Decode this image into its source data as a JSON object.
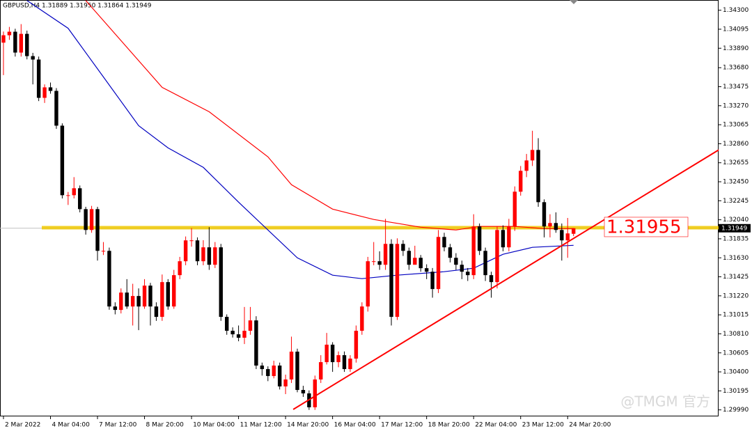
{
  "chart_data": {
    "type": "candlestick",
    "title": "GBPUSD,H4  1.31889 1.31950 1.31864 1.31949",
    "watermark": "@TMGM 官方",
    "up_color": "#ff0000",
    "down_color": "#000000",
    "categories": [
      "2 Mar 2022",
      null,
      null,
      null,
      null,
      null,
      null,
      null,
      "4 Mar 04:00",
      null,
      null,
      null,
      null,
      null,
      null,
      null,
      "7 Mar 12:00",
      null,
      null,
      null,
      null,
      null,
      null,
      null,
      "8 Mar 20:00",
      null,
      null,
      null,
      null,
      null,
      null,
      null,
      "10 Mar 04:00",
      null,
      null,
      null,
      null,
      null,
      null,
      null,
      "11 Mar 12:00",
      null,
      null,
      null,
      null,
      null,
      null,
      null,
      "14 Mar 20:00",
      null,
      null,
      null,
      null,
      null,
      null,
      null,
      "16 Mar 04:00",
      null,
      null,
      null,
      null,
      null,
      null,
      null,
      "17 Mar 12:00",
      null,
      null,
      null,
      null,
      null,
      null,
      null,
      "18 Mar 20:00",
      null,
      null,
      null,
      null,
      null,
      null,
      null,
      "22 Mar 04:00",
      null,
      null,
      null,
      null,
      null,
      null,
      null,
      "23 Mar 12:00",
      null,
      null,
      null,
      null,
      null,
      null,
      null,
      "24 Mar 20:00",
      null
    ],
    "open": [
      1.3395,
      1.3403,
      1.34068,
      1.33843,
      1.34045,
      1.33805,
      1.33768,
      1.33355,
      1.33468,
      1.3343,
      1.33055,
      1.32305,
      1.32305,
      1.3238,
      1.32155,
      1.3193,
      1.32155,
      1.31705,
      1.31705,
      1.31105,
      1.31068,
      1.31255,
      1.31105,
      1.31218,
      1.31105,
      1.3133,
      1.31105,
      1.30993,
      1.31368,
      1.31105,
      1.31443,
      1.31593,
      1.31818,
      1.31818,
      1.31593,
      1.31743,
      1.31555,
      1.31743,
      1.30993,
      1.30843,
      1.30805,
      1.30768,
      1.30843,
      1.30955,
      1.30468,
      1.3043,
      1.30355,
      1.30468,
      1.30243,
      1.30318,
      1.30618,
      1.30205,
      1.30168,
      1.30018,
      1.30318,
      1.30505,
      1.30693,
      1.30505,
      1.3058,
      1.3043,
      1.30543,
      1.30843,
      1.31105,
      1.31593,
      1.31593,
      1.31555,
      1.3178,
      1.30993,
      1.3178,
      1.31705,
      1.31555,
      1.3163,
      1.31518,
      1.3148,
      1.31293,
      1.31855,
      1.31743,
      1.3163,
      1.31555,
      1.3148,
      1.31443,
      1.31968,
      1.31705,
      1.31443,
      1.31368,
      1.3193,
      1.31743,
      1.31968,
      1.32343,
      1.32568,
      1.3268,
      1.32793,
      1.3223,
      1.31968,
      1.32005,
      1.3193,
      1.31818,
      1.31889
    ],
    "high": [
      1.3407,
      1.3412,
      1.341,
      1.3415,
      1.3408,
      1.3384,
      1.338,
      1.335,
      1.3352,
      1.3346,
      1.3308,
      1.3234,
      1.325,
      1.3241,
      1.3218,
      1.3219,
      1.3218,
      1.318,
      1.3174,
      1.3115,
      1.313,
      1.314,
      1.3135,
      1.313,
      1.314,
      1.3136,
      1.3115,
      1.3145,
      1.314,
      1.315,
      1.3164,
      1.3186,
      1.3195,
      1.3185,
      1.3182,
      1.3196,
      1.318,
      1.3178,
      1.3102,
      1.3088,
      1.309,
      1.311,
      1.311,
      1.31,
      1.305,
      1.3046,
      1.3052,
      1.305,
      1.3037,
      1.3078,
      1.3065,
      1.3025,
      1.302,
      1.3036,
      1.3058,
      1.3082,
      1.3072,
      1.3062,
      1.3062,
      1.3058,
      1.309,
      1.3115,
      1.3164,
      1.318,
      1.317,
      1.3205,
      1.3183,
      1.3184,
      1.3182,
      1.3174,
      1.3176,
      1.3166,
      1.3156,
      1.3152,
      1.3193,
      1.319,
      1.3178,
      1.3168,
      1.316,
      1.3152,
      1.321,
      1.32,
      1.3174,
      1.3148,
      1.3197,
      1.3198,
      1.3205,
      1.324,
      1.3262,
      1.3275,
      1.33,
      1.3292,
      1.3226,
      1.321,
      1.3212,
      1.32,
      1.3206,
      1.3195
    ],
    "low": [
      1.336,
      1.3398,
      1.338,
      1.338,
      1.3377,
      1.335,
      1.3332,
      1.333,
      1.334,
      1.3302,
      1.3227,
      1.322,
      1.3227,
      1.3212,
      1.3188,
      1.319,
      1.316,
      1.3166,
      1.3107,
      1.3102,
      1.3103,
      1.3108,
      1.309,
      1.3085,
      1.3108,
      1.309,
      1.3095,
      1.3095,
      1.3107,
      1.3108,
      1.314,
      1.3155,
      1.3175,
      1.3155,
      1.3155,
      1.315,
      1.3152,
      1.3095,
      1.308,
      1.3077,
      1.3073,
      1.307,
      1.308,
      1.3043,
      1.3036,
      1.303,
      1.3033,
      1.3021,
      1.3016,
      1.3028,
      1.3018,
      1.3013,
      1.2999,
      1.2999,
      1.3028,
      1.3048,
      1.304,
      1.3045,
      1.304,
      1.304,
      1.305,
      1.308,
      1.3105,
      1.3155,
      1.315,
      1.315,
      1.309,
      1.3096,
      1.3165,
      1.315,
      1.3158,
      1.3148,
      1.314,
      1.312,
      1.3125,
      1.317,
      1.3158,
      1.315,
      1.314,
      1.3138,
      1.314,
      1.3166,
      1.3138,
      1.312,
      1.313,
      1.317,
      1.317,
      1.3192,
      1.323,
      1.325,
      1.3262,
      1.3218,
      1.3185,
      1.3185,
      1.319,
      1.316,
      1.3163,
      1.31864
    ],
    "close": [
      1.3403,
      1.34068,
      1.33843,
      1.34045,
      1.33805,
      1.33768,
      1.33355,
      1.33468,
      1.3343,
      1.33055,
      1.32305,
      1.32305,
      1.3238,
      1.32155,
      1.3193,
      1.32155,
      1.31705,
      1.31705,
      1.31105,
      1.31068,
      1.31255,
      1.31105,
      1.31218,
      1.31105,
      1.3133,
      1.31105,
      1.30993,
      1.31368,
      1.31105,
      1.31443,
      1.31593,
      1.31818,
      1.31818,
      1.31593,
      1.31743,
      1.31555,
      1.31743,
      1.30993,
      1.30843,
      1.30805,
      1.30768,
      1.30843,
      1.30955,
      1.30468,
      1.3043,
      1.30355,
      1.30468,
      1.30243,
      1.30318,
      1.30618,
      1.30205,
      1.30168,
      1.30018,
      1.30318,
      1.30505,
      1.30693,
      1.30505,
      1.3058,
      1.3043,
      1.30543,
      1.30843,
      1.31105,
      1.31593,
      1.31593,
      1.31555,
      1.3178,
      1.30993,
      1.3178,
      1.31705,
      1.31555,
      1.3163,
      1.31518,
      1.3148,
      1.31293,
      1.31855,
      1.31743,
      1.3163,
      1.31555,
      1.3148,
      1.31443,
      1.31968,
      1.31705,
      1.31443,
      1.31368,
      1.3193,
      1.31743,
      1.31968,
      1.32343,
      1.32568,
      1.3268,
      1.32793,
      1.3223,
      1.31968,
      1.32005,
      1.3193,
      1.31818,
      1.31893,
      1.31949
    ],
    "lines": [
      {
        "color": "#ff0000",
        "x": [
          14,
          27,
          35,
          45,
          49,
          56,
          63,
          71,
          77,
          81,
          87,
          92,
          97
        ],
        "values": [
          1.34405,
          1.33468,
          1.33205,
          1.32718,
          1.32418,
          1.32155,
          1.32043,
          1.3196,
          1.3193,
          1.31968,
          1.31968,
          1.31945,
          1.31945
        ]
      },
      {
        "color": "#0000c0",
        "x": [
          4,
          11,
          17,
          23,
          28,
          34,
          40,
          45,
          50,
          56,
          61,
          67,
          75,
          80,
          85,
          90,
          97
        ],
        "values": [
          1.34405,
          1.34105,
          1.3358,
          1.33055,
          1.32815,
          1.32605,
          1.3223,
          1.3193,
          1.3163,
          1.31443,
          1.31405,
          1.31443,
          1.3148,
          1.31518,
          1.31668,
          1.31743,
          1.31765
        ]
      }
    ],
    "trendline": {
      "color": "#ff0000",
      "x": [
        49.3,
        121.68
      ],
      "values": [
        1.29995,
        1.32793
      ]
    },
    "level": {
      "value": 1.31955,
      "color": "#f0c800"
    },
    "current_price": 1.31949,
    "xlim": [
      -0.59,
      121.68
    ],
    "ylim": [
      1.2992,
      1.3441
    ],
    "yticks": [
      {
        "value": 1.343,
        "label": "1.34300"
      },
      1.34095,
      {
        "value": 1.3389,
        "label": "1.33890"
      },
      {
        "value": 1.3368,
        "label": "1.33680"
      },
      1.33475,
      {
        "value": 1.3327,
        "label": "1.33270"
      },
      1.33065,
      {
        "value": 1.3286,
        "label": "1.32860"
      },
      1.32655,
      {
        "value": 1.3245,
        "label": "1.32450"
      },
      1.32245,
      {
        "value": 1.3204,
        "label": "1.32040"
      },
      1.31835,
      {
        "value": 1.3163,
        "label": "1.31630"
      },
      1.31425,
      {
        "value": 1.3122,
        "label": "1.31220"
      },
      1.31015,
      {
        "value": 1.3081,
        "label": "1.30810"
      },
      1.30605,
      {
        "value": 1.304,
        "label": "1.30400"
      },
      1.30195,
      {
        "value": 1.2999,
        "label": "1.29990"
      }
    ]
  }
}
